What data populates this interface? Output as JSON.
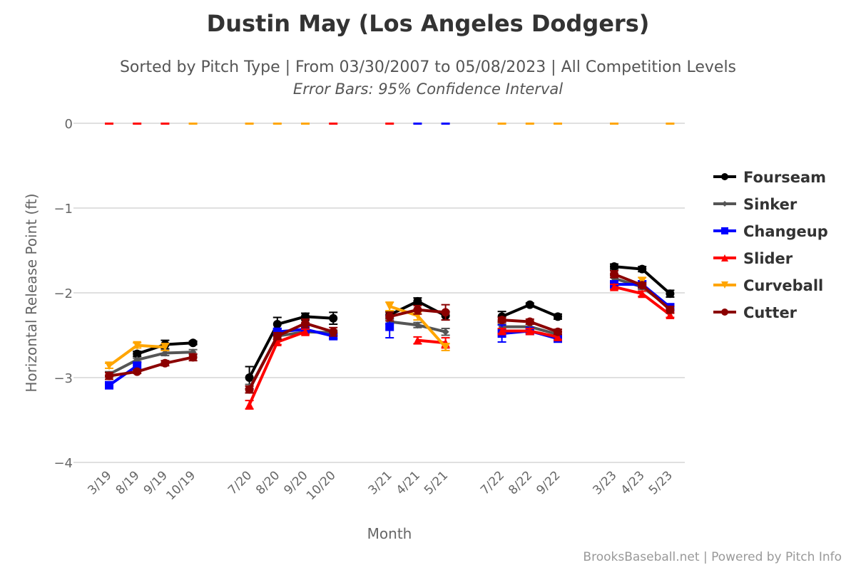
{
  "chart_data": {
    "type": "line",
    "title": "Dustin May (Los Angeles Dodgers)",
    "subtitle": "Sorted by Pitch Type | From 03/30/2007 to 05/08/2023 | All Competition Levels",
    "subtitle2": "Error Bars: 95% Confidence Interval",
    "xlabel": "Month",
    "ylabel": "Horizontal Release Point (ft)",
    "ylim": [
      -4,
      0
    ],
    "yticks": [
      0,
      -1,
      -2,
      -3,
      -4
    ],
    "ytick_labels": [
      "0",
      "−1",
      "−2",
      "−3",
      "−4"
    ],
    "grid": true,
    "legend_position": "right",
    "categories": [
      "3/19",
      "8/19",
      "9/19",
      "10/19",
      "7/20",
      "8/20",
      "9/20",
      "10/20",
      "3/21",
      "4/21",
      "5/21",
      "7/22",
      "8/22",
      "9/22",
      "3/23",
      "4/23",
      "5/23"
    ],
    "groups": [
      [
        0,
        1,
        2,
        3
      ],
      [
        4,
        5,
        6,
        7
      ],
      [
        8,
        9,
        10
      ],
      [
        11,
        12,
        13
      ],
      [
        14,
        15,
        16
      ]
    ],
    "series": [
      {
        "name": "Fourseam",
        "color": "#000000",
        "marker": "circle",
        "values": [
          null,
          -2.72,
          -2.61,
          -2.59,
          -3.0,
          -2.37,
          -2.28,
          -2.3,
          -2.26,
          -2.1,
          -2.27,
          -2.28,
          -2.14,
          -2.28,
          -1.69,
          -1.72,
          -2.01
        ],
        "err": [
          null,
          0.03,
          0.05,
          0.02,
          0.13,
          0.08,
          0.04,
          0.07,
          0.04,
          0.04,
          0.05,
          0.06,
          0.02,
          0.03,
          0.03,
          0.03,
          0.04
        ]
      },
      {
        "name": "Sinker",
        "color": "#555555",
        "marker": "diamond",
        "values": [
          -2.96,
          -2.79,
          -2.71,
          -2.7,
          -3.13,
          -2.51,
          -2.46,
          -2.47,
          -2.34,
          -2.38,
          -2.46,
          -2.4,
          -2.4,
          -2.49,
          -1.83,
          -1.93,
          -2.18
        ],
        "err": [
          0.03,
          0.02,
          0.03,
          0.03,
          0.05,
          0.03,
          0.03,
          0.03,
          0.03,
          0.03,
          0.04,
          0.03,
          0.03,
          0.03,
          0.03,
          0.03,
          0.03
        ]
      },
      {
        "name": "Changeup",
        "color": "#0000ff",
        "marker": "square",
        "values": [
          -3.09,
          -2.86,
          null,
          null,
          null,
          -2.46,
          -2.43,
          -2.51,
          -2.4,
          null,
          null,
          -2.48,
          -2.45,
          -2.54,
          -1.9,
          -1.9,
          -2.17
        ],
        "err": [
          0.03,
          0.04,
          null,
          null,
          null,
          0.04,
          0.04,
          0.03,
          0.13,
          null,
          null,
          0.1,
          0.03,
          0.03,
          0.04,
          0.04,
          0.04
        ]
      },
      {
        "name": "Slider",
        "color": "#ff0000",
        "marker": "triangle-up",
        "values": [
          null,
          null,
          null,
          null,
          -3.32,
          -2.58,
          -2.46,
          null,
          null,
          -2.56,
          -2.59,
          -2.45,
          -2.45,
          -2.52,
          -1.93,
          -2.01,
          -2.26
        ],
        "err": [
          null,
          null,
          null,
          null,
          0.05,
          0.03,
          0.03,
          null,
          null,
          0.04,
          0.06,
          0.03,
          0.03,
          0.03,
          0.03,
          0.03,
          0.03
        ]
      },
      {
        "name": "Curveball",
        "color": "#ffa500",
        "marker": "triangle-down",
        "values": [
          -2.86,
          -2.62,
          -2.64,
          null,
          null,
          null,
          null,
          null,
          -2.16,
          -2.27,
          -2.64,
          null,
          null,
          null,
          null,
          -1.86,
          null
        ],
        "err": [
          0.03,
          0.03,
          0.04,
          null,
          null,
          null,
          null,
          null,
          0.05,
          0.05,
          0.04,
          null,
          null,
          null,
          null,
          0.04,
          null
        ]
      },
      {
        "name": "Cutter",
        "color": "#8b0000",
        "marker": "circle",
        "values": [
          -2.98,
          -2.93,
          -2.83,
          -2.76,
          -3.14,
          -2.51,
          -2.36,
          -2.46,
          -2.28,
          -2.2,
          -2.23,
          -2.32,
          -2.34,
          -2.46,
          -1.78,
          -1.91,
          -2.2
        ],
        "err": [
          0.04,
          0.02,
          0.03,
          0.04,
          0.04,
          0.04,
          0.05,
          0.05,
          0.05,
          0.05,
          0.09,
          0.03,
          0.03,
          0.03,
          0.04,
          0.03,
          0.04
        ]
      }
    ],
    "zero_markers": [
      {
        "category": "3/19",
        "color": "#ff0000"
      },
      {
        "category": "8/19",
        "color": "#ff0000"
      },
      {
        "category": "9/19",
        "color": "#ff0000"
      },
      {
        "category": "10/19",
        "color": "#ffa500"
      },
      {
        "category": "7/20",
        "color": "#ffa500"
      },
      {
        "category": "8/20",
        "color": "#ffa500"
      },
      {
        "category": "9/20",
        "color": "#ffa500"
      },
      {
        "category": "10/20",
        "color": "#ff0000"
      },
      {
        "category": "3/21",
        "color": "#ff0000"
      },
      {
        "category": "4/21",
        "color": "#0000ff"
      },
      {
        "category": "5/21",
        "color": "#0000ff"
      },
      {
        "category": "7/22",
        "color": "#ffa500"
      },
      {
        "category": "8/22",
        "color": "#ffa500"
      },
      {
        "category": "9/22",
        "color": "#ffa500"
      },
      {
        "category": "3/23",
        "color": "#ffa500"
      },
      {
        "category": "5/23",
        "color": "#ffa500"
      }
    ]
  },
  "footer": {
    "credit": "BrooksBaseball.net | Powered by Pitch Info"
  }
}
